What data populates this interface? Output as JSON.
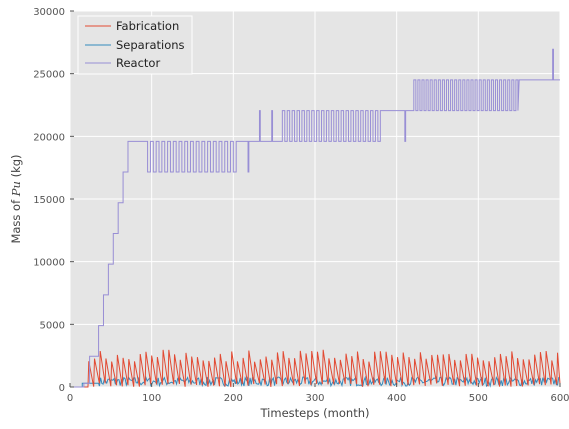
{
  "chart_data": {
    "type": "line",
    "xlabel": "Timesteps (month)",
    "ylabel_prefix": "Mass of ",
    "ylabel_symbol": "Pu",
    "ylabel_suffix": " (kg)",
    "xlim": [
      0,
      600
    ],
    "ylim": [
      0,
      30000
    ],
    "xticks": [
      0,
      100,
      200,
      300,
      400,
      500,
      600
    ],
    "yticks": [
      0,
      5000,
      10000,
      15000,
      20000,
      25000,
      30000
    ],
    "grid": true,
    "legend_position": "top-left",
    "colors": {
      "background": "#E5E5E5",
      "grid": "#FFFFFF",
      "Fabrication": "#E24A33",
      "Separations": "#348ABD",
      "Reactor": "#988ED5"
    },
    "series": [
      {
        "name": "Fabrication",
        "color": "#E24A33",
        "pattern": "sawtooth",
        "start_month": 22,
        "period_months": 7,
        "peak_range_kg": [
          2000,
          3000
        ],
        "trough_kg": 0
      },
      {
        "name": "Separations",
        "color": "#348ABD",
        "pattern": "noise",
        "start_month": 15,
        "typical_range_kg": [
          150,
          800
        ],
        "initial_level_kg": 300
      },
      {
        "name": "Reactor",
        "color": "#988ED5",
        "pattern": "step",
        "points": [
          [
            0,
            0
          ],
          [
            17,
            0
          ],
          [
            17,
            300
          ],
          [
            24,
            300
          ],
          [
            24,
            2450
          ],
          [
            35,
            2450
          ],
          [
            35,
            4900
          ],
          [
            41,
            4900
          ],
          [
            41,
            7350
          ],
          [
            47,
            7350
          ],
          [
            47,
            9800
          ],
          [
            53,
            9800
          ],
          [
            53,
            12250
          ],
          [
            59,
            12250
          ],
          [
            59,
            14700
          ],
          [
            65,
            14700
          ],
          [
            65,
            17150
          ],
          [
            71,
            17150
          ],
          [
            71,
            19600
          ],
          [
            600,
            19600
          ]
        ],
        "plateaus": [
          {
            "from": 71,
            "to": 230,
            "level": 19600,
            "dip": 17150,
            "dip_from": 95,
            "dip_to": 205
          },
          {
            "from": 230,
            "to": 420,
            "level": 19600,
            "alt": 22050,
            "alt_from": 232,
            "alt_to": 378
          },
          {
            "from": 380,
            "to": 420,
            "level": 22050,
            "dip": 19600,
            "dip_at": 410
          },
          {
            "from": 420,
            "to": 600,
            "level": 22050,
            "alt": 24500,
            "alt_from": 421,
            "alt_to": 550
          },
          {
            "from": 550,
            "to": 600,
            "level": 24500,
            "spike": 26950,
            "spike_at": 591
          }
        ]
      }
    ]
  }
}
